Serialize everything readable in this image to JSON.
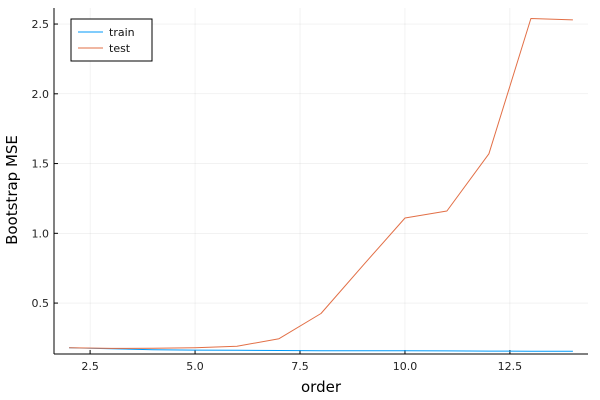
{
  "chart_data": {
    "type": "line",
    "xlabel": "order",
    "ylabel": "Bootstrap MSE",
    "xlim": [
      1.64,
      14.36
    ],
    "ylim": [
      0.135,
      2.615
    ],
    "xticks": [
      2.5,
      5.0,
      7.5,
      10.0,
      12.5
    ],
    "xtick_labels": [
      "2.5",
      "5.0",
      "7.5",
      "10.0",
      "12.5"
    ],
    "yticks": [
      0.5,
      1.0,
      1.5,
      2.0,
      2.5
    ],
    "ytick_labels": [
      "0.5",
      "1.0",
      "1.5",
      "2.0",
      "2.5"
    ],
    "grid": true,
    "legend_position": "top-left",
    "x": [
      2,
      3,
      4,
      5,
      6,
      7,
      8,
      9,
      10,
      11,
      12,
      13,
      14
    ],
    "series": [
      {
        "name": "train",
        "color": "#009af9",
        "values": [
          0.18,
          0.172,
          0.166,
          0.163,
          0.162,
          0.16,
          0.159,
          0.158,
          0.158,
          0.157,
          0.156,
          0.155,
          0.154
        ]
      },
      {
        "name": "test",
        "color": "#e26f46",
        "values": [
          0.18,
          0.175,
          0.176,
          0.18,
          0.19,
          0.245,
          0.425,
          0.77,
          1.11,
          1.16,
          1.57,
          2.54,
          2.53
        ]
      }
    ]
  }
}
